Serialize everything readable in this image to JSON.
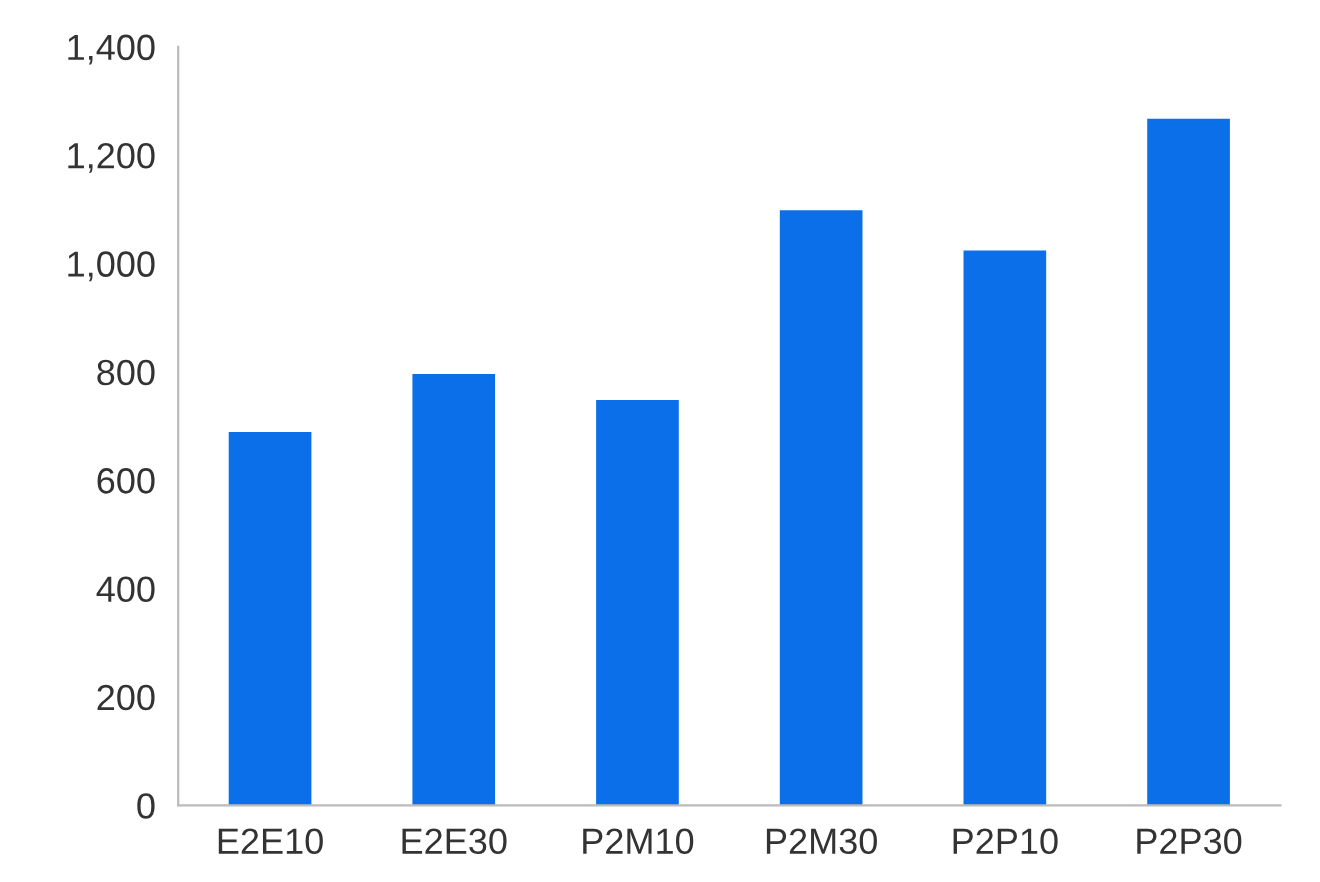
{
  "chart_data": {
    "type": "bar",
    "categories": [
      "E2E10",
      "E2E30",
      "P2M10",
      "P2M30",
      "P2P10",
      "P2P30"
    ],
    "values": [
      689,
      796,
      748,
      1098,
      1024,
      1267
    ],
    "color": "#0a6fe8",
    "ylim": [
      0,
      1400
    ],
    "yticks": [
      {
        "value": 0,
        "label": "0"
      },
      {
        "value": 200,
        "label": "200"
      },
      {
        "value": 400,
        "label": "400"
      },
      {
        "value": 600,
        "label": "600"
      },
      {
        "value": 800,
        "label": "800"
      },
      {
        "value": 1000,
        "label": "1,000"
      },
      {
        "value": 1200,
        "label": "1,200"
      },
      {
        "value": 1400,
        "label": "1,400"
      }
    ],
    "grid": false
  }
}
